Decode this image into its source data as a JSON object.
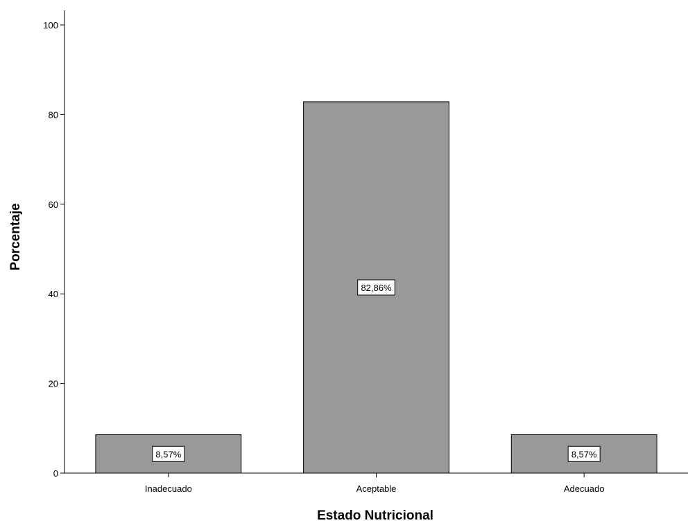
{
  "chart_data": {
    "type": "bar",
    "title": "",
    "xlabel": "Estado Nutricional",
    "ylabel": "Porcentaje",
    "categories": [
      "Inadecuado",
      "Aceptable",
      "Adecuado"
    ],
    "values": [
      8.57,
      82.86,
      8.57
    ],
    "data_labels": [
      "8,57%",
      "82,86%",
      "8,57%"
    ],
    "ylim": [
      0,
      100
    ],
    "yticks": [
      0,
      20,
      40,
      60,
      80,
      100
    ],
    "ytick_labels": [
      "0",
      "20",
      "40",
      "60",
      "80",
      "100"
    ],
    "grid": false,
    "legend": "none",
    "bar_color": "#999999"
  }
}
